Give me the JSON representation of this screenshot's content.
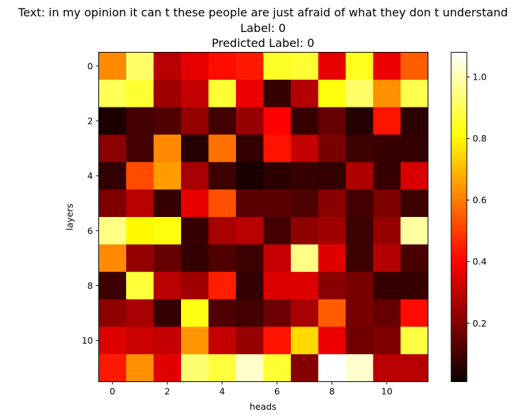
{
  "chart_data": {
    "type": "heatmap",
    "title_lines": [
      "Text: in my opinion it can t these people are just afraid of what they don t understand",
      "Label: 0",
      "Predicted Label: 0"
    ],
    "xlabel": "heads",
    "ylabel": "layers",
    "x_ticks": [
      0,
      2,
      4,
      6,
      8,
      10
    ],
    "y_ticks": [
      0,
      2,
      4,
      6,
      8,
      10
    ],
    "colormap": "hot",
    "colorbar": {
      "min": 0.01,
      "max": 1.08,
      "ticks": [
        0.2,
        0.4,
        0.6,
        0.8,
        1.0
      ],
      "tick_labels": [
        "0.2",
        "0.4",
        "0.6",
        "0.8",
        "1.0"
      ]
    },
    "values": [
      [
        0.62,
        0.92,
        0.28,
        0.36,
        0.42,
        0.44,
        0.85,
        0.86,
        0.36,
        0.84,
        0.37,
        0.55
      ],
      [
        0.9,
        0.86,
        0.24,
        0.3,
        0.86,
        0.37,
        0.06,
        0.27,
        0.82,
        0.92,
        0.63,
        0.89
      ],
      [
        0.01,
        0.08,
        0.1,
        0.22,
        0.08,
        0.22,
        0.4,
        0.06,
        0.14,
        0.03,
        0.43,
        0.04
      ],
      [
        0.2,
        0.08,
        0.62,
        0.03,
        0.58,
        0.05,
        0.43,
        0.3,
        0.17,
        0.07,
        0.06,
        0.05
      ],
      [
        0.05,
        0.52,
        0.65,
        0.25,
        0.07,
        0.01,
        0.04,
        0.06,
        0.05,
        0.26,
        0.06,
        0.33
      ],
      [
        0.18,
        0.28,
        0.06,
        0.36,
        0.53,
        0.12,
        0.12,
        0.1,
        0.2,
        0.08,
        0.18,
        0.07
      ],
      [
        0.95,
        0.8,
        0.82,
        0.06,
        0.25,
        0.28,
        0.08,
        0.21,
        0.24,
        0.07,
        0.22,
        0.98
      ],
      [
        0.62,
        0.22,
        0.14,
        0.05,
        0.1,
        0.07,
        0.3,
        0.95,
        0.35,
        0.07,
        0.27,
        0.09
      ],
      [
        0.07,
        0.87,
        0.28,
        0.24,
        0.45,
        0.05,
        0.34,
        0.34,
        0.2,
        0.17,
        0.06,
        0.06
      ],
      [
        0.21,
        0.25,
        0.06,
        0.83,
        0.1,
        0.08,
        0.15,
        0.25,
        0.55,
        0.17,
        0.14,
        0.42
      ],
      [
        0.34,
        0.31,
        0.3,
        0.64,
        0.3,
        0.22,
        0.43,
        0.75,
        0.37,
        0.16,
        0.18,
        0.88
      ],
      [
        0.44,
        0.63,
        0.35,
        0.93,
        0.87,
        1.02,
        0.86,
        0.19,
        1.08,
        1.03,
        0.28,
        0.28
      ]
    ]
  }
}
